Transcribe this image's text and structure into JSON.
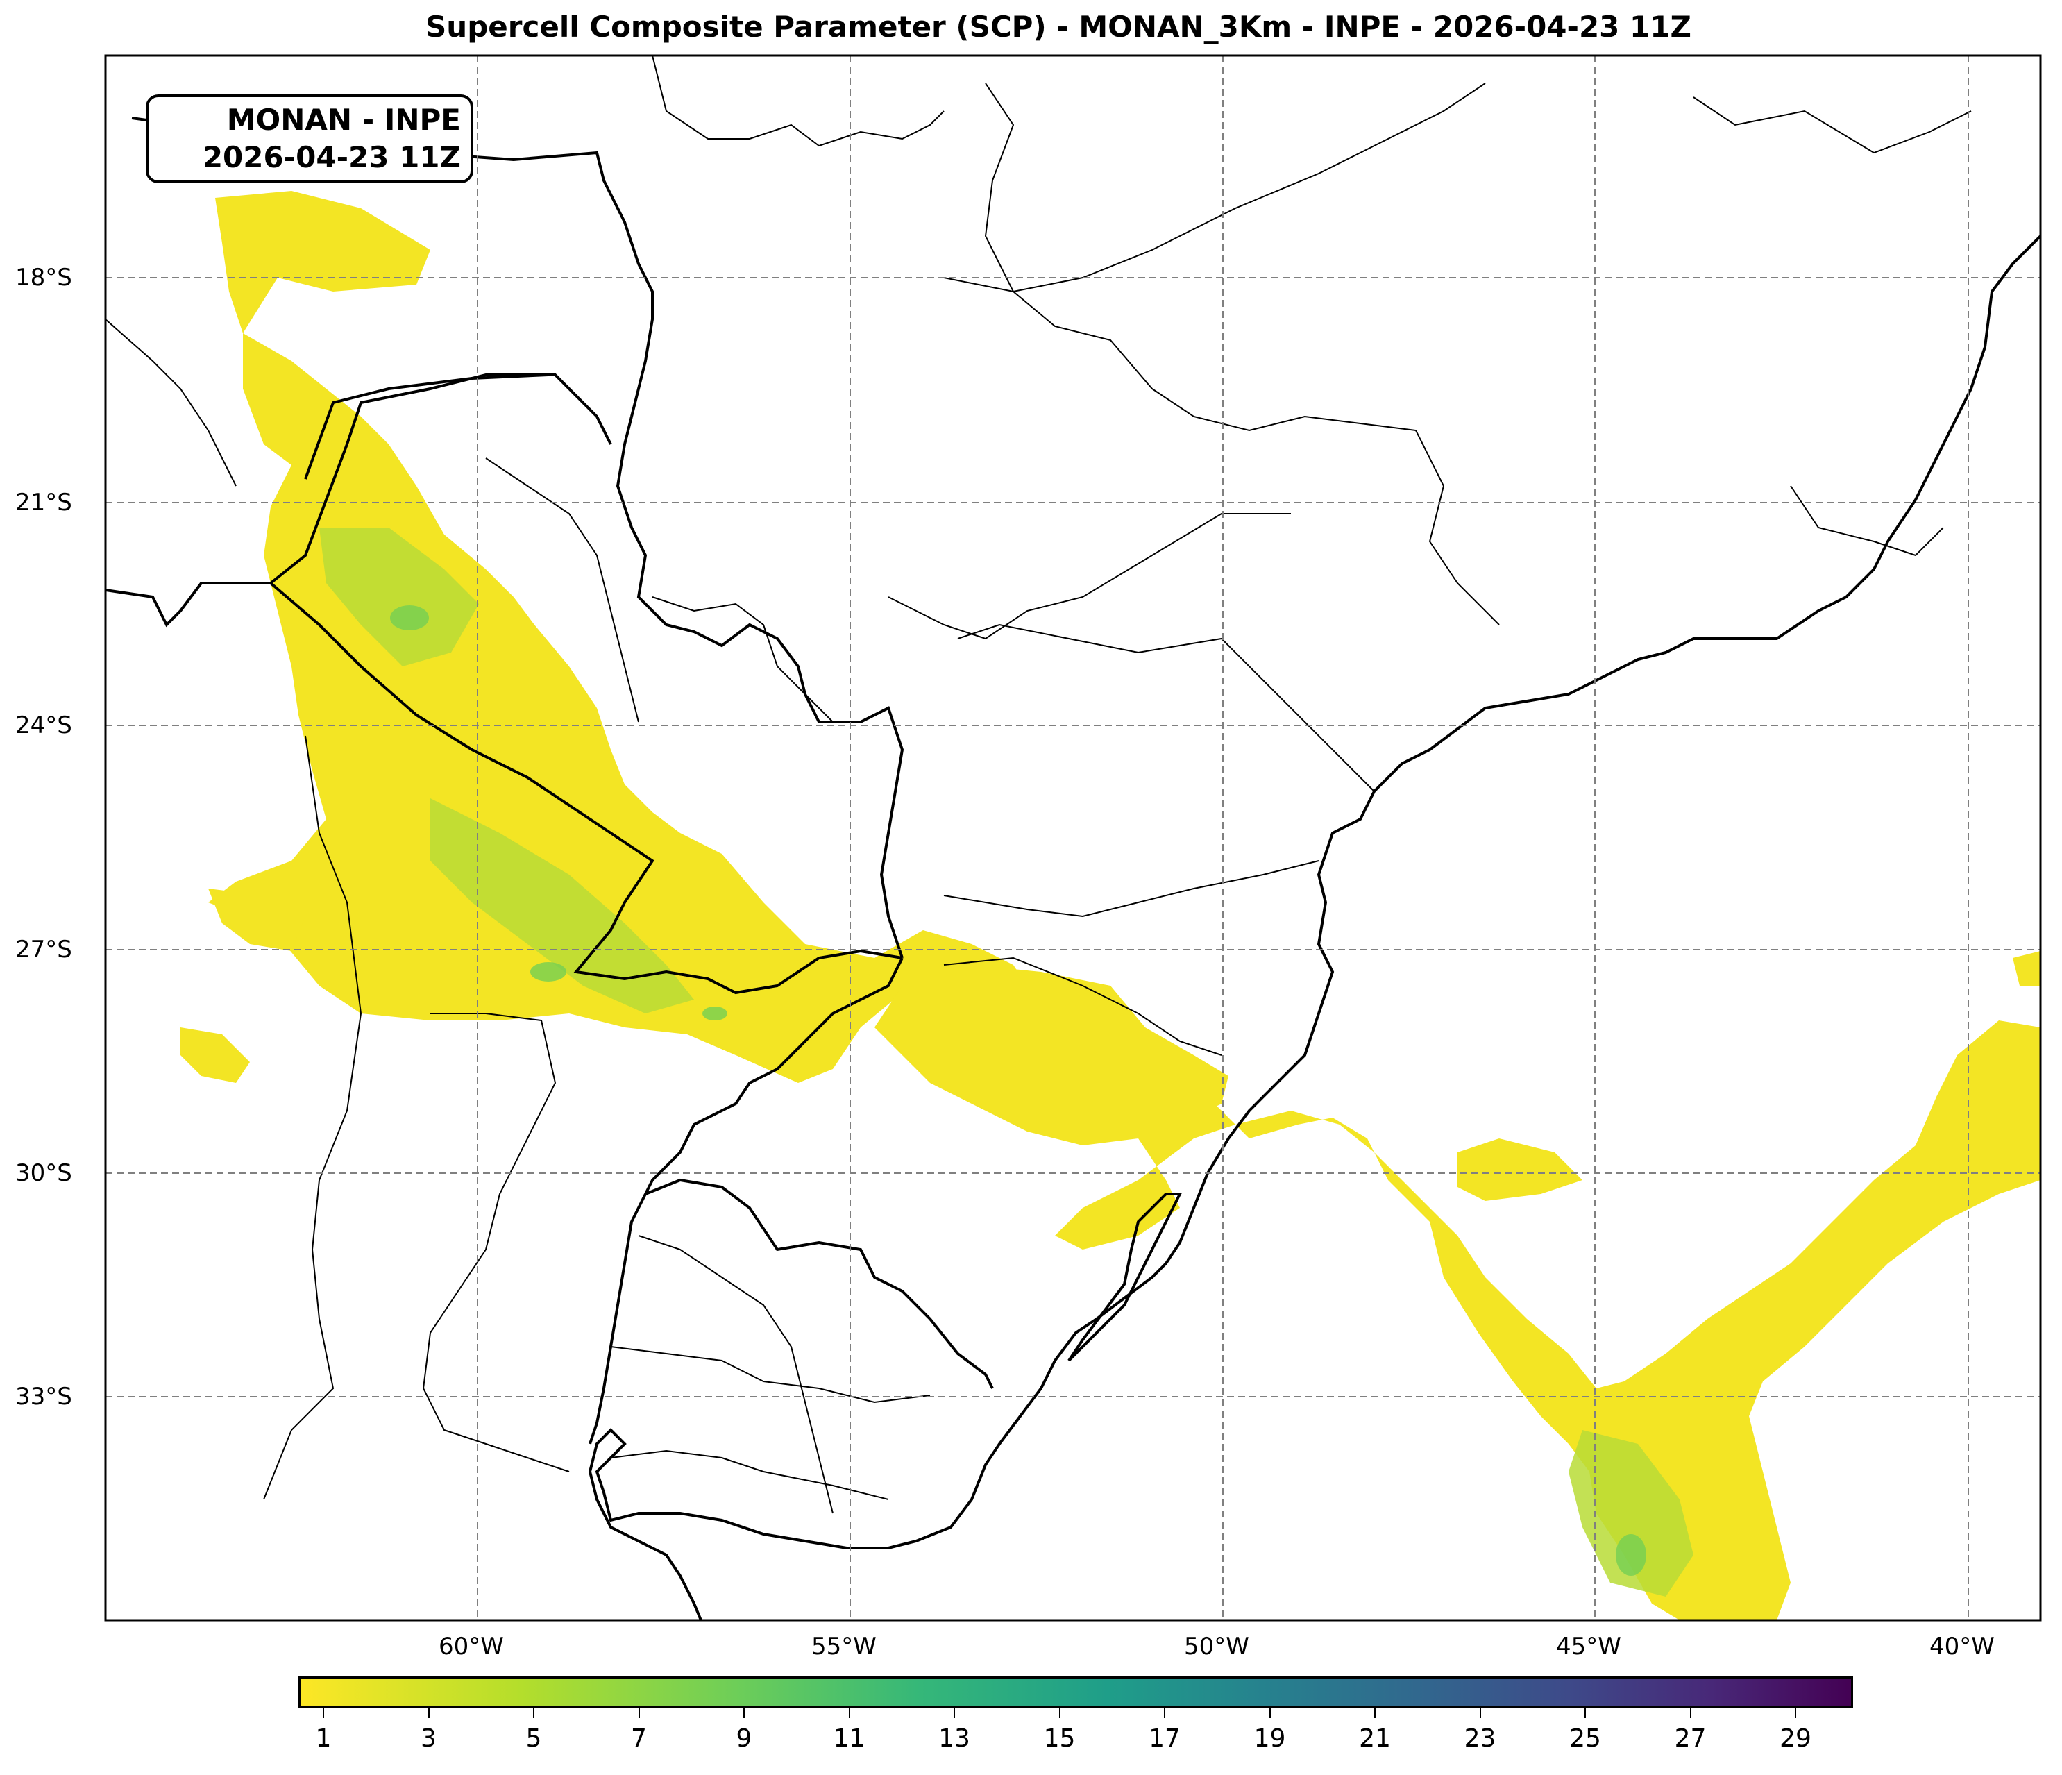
{
  "title": "Supercell Composite Parameter (SCP) - MONAN_3Km - INPE - 2026-04-23 11Z",
  "info_box": {
    "line1": "MONAN - INPE",
    "line2": "2026-04-23 11Z"
  },
  "map": {
    "lat_labels": [
      "18°S",
      "21°S",
      "24°S",
      "27°S",
      "30°S",
      "33°S"
    ],
    "lon_labels": [
      "60°W",
      "55°W",
      "50°W",
      "45°W",
      "40°W"
    ],
    "gridlines": true,
    "gridline_style": "dashed",
    "field_colors": {
      "low": "#f3e524",
      "medium": "#b8dc36",
      "high": "#74cf52"
    },
    "border_color": "#000000"
  },
  "colorbar": {
    "colormap": "viridis_r",
    "ticks": [
      "1",
      "3",
      "5",
      "7",
      "9",
      "11",
      "13",
      "15",
      "17",
      "19",
      "21",
      "23",
      "25",
      "27",
      "29"
    ]
  }
}
